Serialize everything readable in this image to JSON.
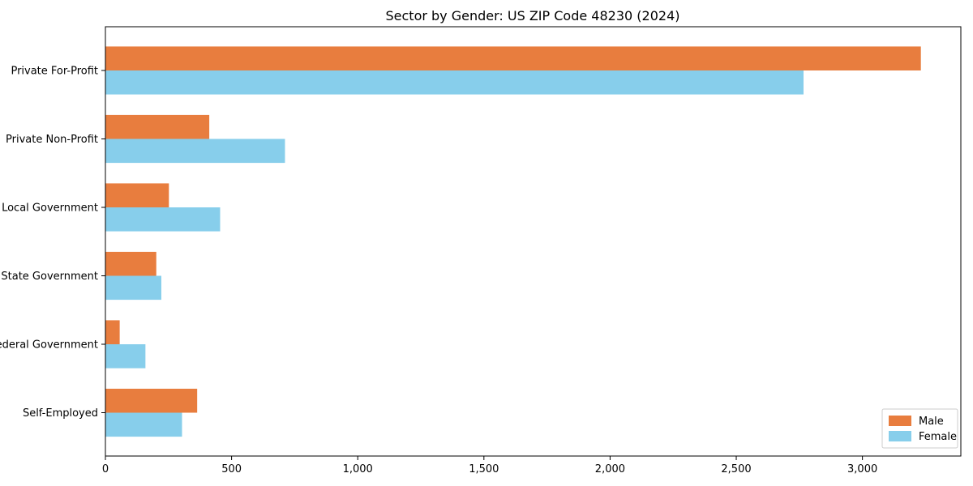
{
  "chart_data": {
    "type": "bar",
    "orientation": "horizontal",
    "title": "Sector by Gender: US ZIP Code 48230 (2024)",
    "categories": [
      "Private For-Profit",
      "Private Non-Profit",
      "Local Government",
      "State Government",
      "Federal Government",
      "Self-Employed"
    ],
    "series": [
      {
        "name": "Male",
        "color": "#e87d3e",
        "values": [
          3230,
          410,
          250,
          200,
          55,
          362
        ]
      },
      {
        "name": "Female",
        "color": "#87ceeb",
        "values": [
          2765,
          710,
          453,
          220,
          157,
          302
        ]
      }
    ],
    "xlim": [
      0,
      3390
    ],
    "xticks": {
      "values": [
        0,
        500,
        1000,
        1500,
        2000,
        2500,
        3000
      ],
      "labels": [
        "0",
        "500",
        "1,000",
        "1,500",
        "2,000",
        "2,500",
        "3,000"
      ]
    },
    "legend": {
      "position": "lower right",
      "entries": [
        "Male",
        "Female"
      ]
    },
    "grid": false,
    "xlabel": "",
    "ylabel": "",
    "frame_color": "#000000",
    "legend_border_color": "#cccccc"
  }
}
